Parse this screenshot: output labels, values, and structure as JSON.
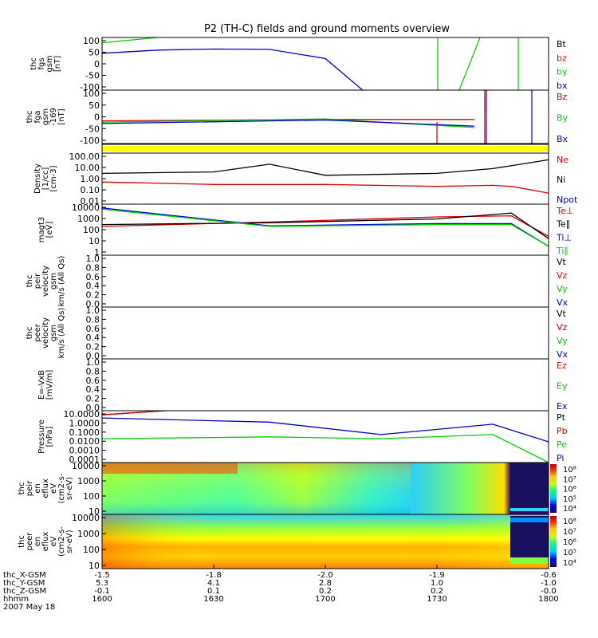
{
  "title": "P2 (TH-C) fields and ground moments overview",
  "colors": {
    "black": "#000000",
    "red": "#e00000",
    "green": "#00d000",
    "blue": "#0000d0",
    "yellow": "#ffff00"
  },
  "panels": [
    {
      "id": "fgs",
      "ylabel": [
        "thc",
        "fgs",
        "gsm",
        "[nT]"
      ],
      "ticks": [
        "100",
        "50",
        "0",
        "-50",
        "-100"
      ],
      "legend": [
        {
          "t": "Bt",
          "c": "black"
        },
        {
          "t": "bz",
          "c": "red"
        },
        {
          "t": "by",
          "c": "green"
        },
        {
          "t": "bx",
          "c": "blue"
        }
      ]
    },
    {
      "id": "fga",
      "ylabel": [
        "thc",
        "fga",
        "gsm",
        "-169",
        "[nT]"
      ],
      "ticks": [
        "100",
        "50",
        "0",
        "-50",
        "-100"
      ],
      "legend": [
        {
          "t": "Bz",
          "c": "red"
        },
        {
          "t": "By",
          "c": "green"
        },
        {
          "t": "Bx",
          "c": "blue"
        }
      ]
    },
    {
      "id": "bar",
      "ylabel": [],
      "ticks": [],
      "legend": []
    },
    {
      "id": "density",
      "ylabel": [
        "Density",
        "[1/cc]",
        "[cm-3]"
      ],
      "ticks": [
        "100.00",
        "10.00",
        "1.00",
        "0.10",
        "0.01"
      ],
      "legend": [
        {
          "t": "Ne",
          "c": "red"
        },
        {
          "t": "Ni",
          "c": "black"
        },
        {
          "t": "Npot",
          "c": "blue"
        }
      ]
    },
    {
      "id": "temp",
      "ylabel": [
        "magt3",
        "[eV]"
      ],
      "ticks": [
        "10000",
        "1000",
        "100",
        "10",
        "1"
      ],
      "legend": [
        {
          "t": "Te⊥",
          "c": "red"
        },
        {
          "t": "Te∥",
          "c": "black"
        },
        {
          "t": "Ti⊥",
          "c": "blue"
        },
        {
          "t": "Ti∥",
          "c": "green"
        }
      ]
    },
    {
      "id": "peir",
      "ylabel": [
        "thc",
        "peir",
        "velocity",
        "gsm",
        "km/s (All Qs)"
      ],
      "ticks": [
        "1.0",
        "0.8",
        "0.6",
        "0.4",
        "0.2",
        "0.0"
      ],
      "legend": [
        {
          "t": "Vt",
          "c": "black"
        },
        {
          "t": "Vz",
          "c": "red"
        },
        {
          "t": "Vy",
          "c": "green"
        },
        {
          "t": "Vx",
          "c": "blue"
        }
      ]
    },
    {
      "id": "peer",
      "ylabel": [
        "thc",
        "peer",
        "velocity",
        "gsm",
        "km/s (All Qs)"
      ],
      "ticks": [
        "1.0",
        "0.8",
        "0.6",
        "0.4",
        "0.2",
        "0.0"
      ],
      "legend": [
        {
          "t": "Vt",
          "c": "black"
        },
        {
          "t": "Vz",
          "c": "red"
        },
        {
          "t": "Vy",
          "c": "green"
        },
        {
          "t": "Vx",
          "c": "blue"
        }
      ]
    },
    {
      "id": "efield",
      "ylabel": [
        "E=-VxB",
        "[mV/m]"
      ],
      "ticks": [
        "1.0",
        "0.8",
        "0.6",
        "0.4",
        "0.2",
        "0.0"
      ],
      "legend": [
        {
          "t": "Ez",
          "c": "red"
        },
        {
          "t": "Ey",
          "c": "green"
        },
        {
          "t": "Ex",
          "c": "blue"
        }
      ]
    },
    {
      "id": "pressure",
      "ylabel": [
        "Pressure",
        "[nPa]"
      ],
      "ticks": [
        "10.0000",
        "1.0000",
        "0.1000",
        "0.0100",
        "0.0010",
        "0.0001"
      ],
      "legend": [
        {
          "t": "Pt",
          "c": "black"
        },
        {
          "t": "Pb",
          "c": "red"
        },
        {
          "t": "Pe",
          "c": "green"
        },
        {
          "t": "Pi",
          "c": "blue"
        }
      ]
    },
    {
      "id": "peir_en",
      "ylabel": [
        "thc",
        "peir",
        "en",
        "eflux",
        "eV",
        "(cm2-s-",
        "sr-eV)"
      ],
      "ticks": [
        "10000",
        "1000",
        "100",
        "10"
      ],
      "legend": [],
      "cbar": [
        "10⁸",
        "10⁷",
        "10⁶",
        "10⁵",
        "10⁴"
      ]
    },
    {
      "id": "peer_en",
      "ylabel": [
        "thc",
        "peer",
        "en",
        "eflux",
        "eV",
        "(cm2-s-",
        "sr-eV)"
      ],
      "ticks": [
        "10000",
        "1000",
        "100",
        "10"
      ],
      "legend": [],
      "cbar": [
        "10⁸",
        "10⁷",
        "10⁶",
        "10⁵",
        "10⁴"
      ]
    }
  ],
  "xaxis": {
    "rows": [
      {
        "label": "thc_X-GSM",
        "values": [
          "-1.5",
          "-1.8",
          "-2.0",
          "-1.9",
          "-0.6"
        ]
      },
      {
        "label": "thc_Y-GSM",
        "values": [
          "5.3",
          "4.1",
          "2.8",
          "1.0",
          "-1.0"
        ]
      },
      {
        "label": "thc_Z-GSM",
        "values": [
          "-0.1",
          "0.1",
          "0.2",
          "0.2",
          "-0.0"
        ]
      },
      {
        "label": "hhmm",
        "values": [
          "1600",
          "1630",
          "1700",
          "1730",
          "1800"
        ]
      }
    ],
    "date": "2007 May 18"
  },
  "chart_data": [
    {
      "type": "line",
      "title": "thc fgs gsm",
      "ylabel": "[nT]",
      "ylim": [
        -100,
        100
      ],
      "x_label": "hhmm",
      "x_range": [
        "1600",
        "1800"
      ],
      "series": [
        {
          "name": "Bt",
          "values": []
        },
        {
          "name": "bz",
          "values": []
        },
        {
          "name": "by",
          "x": [
            "1600",
            "1615"
          ],
          "values": [
            80,
            100
          ]
        },
        {
          "name": "bx",
          "x": [
            "1600",
            "1615",
            "1630",
            "1645",
            "1700",
            "1710"
          ],
          "values": [
            40,
            52,
            56,
            55,
            20,
            -100
          ]
        }
      ]
    },
    {
      "type": "line",
      "title": "thc fga gsm -169",
      "ylabel": "[nT]",
      "ylim": [
        -100,
        100
      ],
      "series": [
        {
          "name": "Bz",
          "x": [
            "1600",
            "1700",
            "1740"
          ],
          "values": [
            -15,
            -10,
            -10
          ]
        },
        {
          "name": "By",
          "x": [
            "1600",
            "1700",
            "1740"
          ],
          "values": [
            -20,
            -8,
            -40
          ]
        },
        {
          "name": "Bx",
          "x": [
            "1600",
            "1700",
            "1740"
          ],
          "values": [
            -25,
            -12,
            -35
          ]
        }
      ]
    },
    {
      "type": "line",
      "title": "Density",
      "ylabel": "[cm-3]",
      "yscale": "log",
      "ylim": [
        0.005,
        200
      ],
      "series": [
        {
          "name": "Ni",
          "x": [
            "1600",
            "1630",
            "1645",
            "1700",
            "1730",
            "1745",
            "1800"
          ],
          "values": [
            3,
            4,
            20,
            2,
            3,
            8,
            50
          ]
        },
        {
          "name": "Ne",
          "x": [
            "1600",
            "1630",
            "1645",
            "1700",
            "1730",
            "1745",
            "1750",
            "1800"
          ],
          "values": [
            0.5,
            0.3,
            0.3,
            0.3,
            0.2,
            0.25,
            0.2,
            0.05
          ]
        }
      ]
    },
    {
      "type": "line",
      "title": "magt3",
      "ylabel": "[eV]",
      "yscale": "log",
      "ylim": [
        1,
        10000
      ],
      "series": [
        {
          "name": "Te⊥",
          "x": [
            "1600",
            "1645",
            "1730",
            "1750",
            "1800"
          ],
          "values": [
            180,
            400,
            1000,
            1200,
            30
          ]
        },
        {
          "name": "Te∥",
          "x": [
            "1600",
            "1645",
            "1730",
            "1750",
            "1800"
          ],
          "values": [
            250,
            350,
            700,
            2000,
            20
          ]
        },
        {
          "name": "Ti⊥",
          "x": [
            "1600",
            "1645",
            "1730",
            "1750",
            "1800"
          ],
          "values": [
            5000,
            200,
            300,
            300,
            5
          ]
        },
        {
          "name": "Ti∥",
          "x": [
            "1600",
            "1645",
            "1730",
            "1750",
            "1800"
          ],
          "values": [
            4000,
            180,
            250,
            250,
            5
          ]
        }
      ]
    },
    {
      "type": "line",
      "title": "thc peir velocity gsm",
      "ylim": [
        0,
        1
      ],
      "series": []
    },
    {
      "type": "line",
      "title": "thc peer velocity gsm",
      "ylim": [
        0,
        1
      ],
      "series": []
    },
    {
      "type": "line",
      "title": "E=-VxB",
      "ylabel": "[mV/m]",
      "ylim": [
        0,
        1
      ],
      "series": []
    },
    {
      "type": "line",
      "title": "Pressure",
      "ylabel": "[nPa]",
      "yscale": "log",
      "ylim": [
        0.0001,
        10
      ],
      "series": [
        {
          "name": "Pt",
          "x": [
            "1600",
            "1620"
          ],
          "values": [
            4,
            12
          ]
        },
        {
          "name": "Pb",
          "x": [
            "1600",
            "1620"
          ],
          "values": [
            4,
            12
          ]
        },
        {
          "name": "Pi",
          "x": [
            "1600",
            "1645",
            "1715",
            "1745",
            "1800"
          ],
          "values": [
            2,
            0.8,
            0.05,
            0.5,
            0.01
          ]
        },
        {
          "name": "Pe",
          "x": [
            "1600",
            "1645",
            "1715",
            "1745",
            "1800"
          ],
          "values": [
            0.02,
            0.03,
            0.02,
            0.05,
            0.0001
          ]
        }
      ]
    },
    {
      "type": "heatmap",
      "title": "thc peir en eflux",
      "ylabel": "eV",
      "yscale": "log",
      "ylim": [
        8,
        20000
      ],
      "zlim": [
        "10⁴",
        "10⁸"
      ]
    },
    {
      "type": "heatmap",
      "title": "thc peer en eflux",
      "ylabel": "eV",
      "yscale": "log",
      "ylim": [
        8,
        20000
      ],
      "zlim": [
        "10⁴",
        "10⁸"
      ]
    }
  ]
}
